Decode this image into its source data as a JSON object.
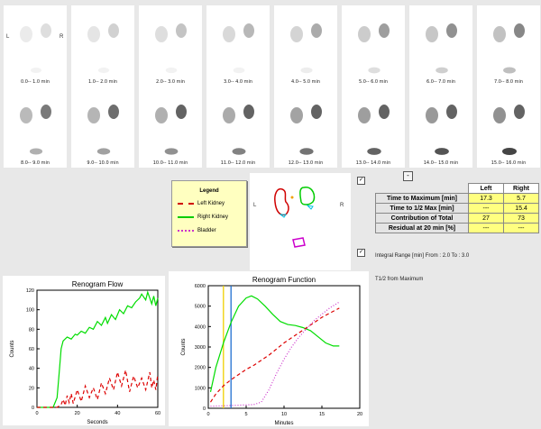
{
  "frames": [
    "0.0-- 1.0 min",
    "1.0-- 2.0 min",
    "2.0-- 3.0 min",
    "3.0-- 4.0 min",
    "4.0-- 5.0 min",
    "5.0-- 6.0 min",
    "6.0-- 7.0 min",
    "7.0-- 8.0 min",
    "8.0-- 9.0 min",
    "9.0-- 10.0 min",
    "10.0-- 11.0 min",
    "11.0-- 12.0 min",
    "12.0-- 13.0 min",
    "13.0-- 14.0 min",
    "14.0-- 15.0 min",
    "15.0-- 16.0 min"
  ],
  "orientation": {
    "left": "L",
    "right": "R"
  },
  "legend": {
    "title": "Legend",
    "items": [
      {
        "label": "Left Kidney",
        "color": "#d00000",
        "style": "dashed"
      },
      {
        "label": "Right Kidney",
        "color": "#00cc00",
        "style": "solid"
      },
      {
        "label": "Bladder",
        "color": "#cc33cc",
        "style": "dotted"
      }
    ]
  },
  "roi": {
    "left": "L",
    "right": "R"
  },
  "stats": {
    "headers": [
      "",
      "Left",
      "Right"
    ],
    "rows": [
      {
        "label": "Time to Maximum [min]",
        "left": "17.3",
        "right": "5.7"
      },
      {
        "label": "Time to 1/2 Max [min]",
        "left": "---",
        "right": "15.4"
      },
      {
        "label": "Contribution of Total",
        "left": "27",
        "right": "73"
      },
      {
        "label": "Residual at 20 min [%]",
        "left": "---",
        "right": "---"
      }
    ]
  },
  "toggle_button": "-",
  "integral_range": "Integral Range [min] From : 2.0  To : 3.0",
  "t12_label": "T1/2 from Maximum",
  "chart_data": [
    {
      "type": "line",
      "title": "Renogram Flow",
      "xlabel": "Seconds",
      "ylabel": "Counts",
      "xlim": [
        0,
        60
      ],
      "ylim": [
        0,
        120
      ],
      "xticks": [
        0,
        20,
        40,
        60
      ],
      "yticks": [
        0,
        20,
        40,
        60,
        80,
        100,
        120
      ],
      "series": [
        {
          "color": "#00dd00",
          "style": "solid",
          "x": [
            0,
            5,
            8,
            10,
            11,
            12,
            13,
            15,
            17,
            19,
            20,
            22,
            24,
            26,
            28,
            30,
            32,
            34,
            35,
            37,
            39,
            41,
            43,
            45,
            47,
            49,
            51,
            52,
            54,
            55,
            56,
            57,
            58,
            59,
            60
          ],
          "y": [
            0,
            0,
            0,
            10,
            35,
            60,
            68,
            72,
            70,
            75,
            74,
            78,
            76,
            82,
            80,
            88,
            84,
            92,
            86,
            95,
            90,
            100,
            96,
            104,
            102,
            108,
            112,
            116,
            110,
            118,
            112,
            106,
            114,
            104,
            112
          ]
        },
        {
          "color": "#dd0000",
          "style": "dashed",
          "x": [
            0,
            8,
            10,
            12,
            13,
            14,
            15,
            16,
            17,
            18,
            20,
            22,
            24,
            26,
            28,
            30,
            32,
            34,
            36,
            38,
            40,
            42,
            44,
            46,
            48,
            50,
            52,
            54,
            56,
            57,
            58,
            59,
            60
          ],
          "y": [
            0,
            0,
            0,
            3,
            8,
            2,
            12,
            5,
            14,
            4,
            18,
            6,
            22,
            10,
            20,
            8,
            25,
            14,
            30,
            18,
            36,
            22,
            38,
            16,
            32,
            20,
            30,
            18,
            36,
            20,
            28,
            18,
            34
          ]
        }
      ]
    },
    {
      "type": "line",
      "title": "Renogram Function",
      "xlabel": "Minutes",
      "ylabel": "Counts",
      "xlim": [
        0,
        20
      ],
      "ylim": [
        0,
        6000
      ],
      "xticks": [
        0,
        5,
        10,
        15,
        20
      ],
      "yticks": [
        0,
        1000,
        2000,
        3000,
        4000,
        5000,
        6000
      ],
      "series": [
        {
          "color": "#00dd00",
          "style": "solid",
          "x": [
            0.3,
            1,
            2,
            3,
            4,
            5,
            5.7,
            6.5,
            7.5,
            8.5,
            9.5,
            10.5,
            11.5,
            12.5,
            13.5,
            14.5,
            15.5,
            16.5,
            17.3
          ],
          "y": [
            800,
            2000,
            3200,
            4200,
            5000,
            5400,
            5500,
            5350,
            5000,
            4600,
            4250,
            4100,
            4050,
            3950,
            3800,
            3500,
            3200,
            3050,
            3050
          ]
        },
        {
          "color": "#dd0000",
          "style": "dashed",
          "x": [
            0.3,
            1,
            2,
            3,
            4,
            5,
            6,
            7,
            8,
            9,
            10,
            11,
            12,
            13,
            14,
            15,
            16,
            17.3
          ],
          "y": [
            300,
            700,
            1100,
            1400,
            1650,
            1900,
            2100,
            2350,
            2600,
            2900,
            3200,
            3450,
            3700,
            3950,
            4200,
            4450,
            4650,
            4900
          ]
        },
        {
          "color": "#cc33cc",
          "style": "dotted",
          "x": [
            0.3,
            2,
            4,
            6,
            7,
            8,
            9,
            10,
            11,
            12,
            13,
            14,
            15,
            16,
            17.3
          ],
          "y": [
            100,
            120,
            150,
            180,
            300,
            900,
            1700,
            2400,
            3000,
            3500,
            3900,
            4300,
            4600,
            4900,
            5200
          ]
        }
      ],
      "markers": [
        {
          "x": 2.0,
          "color": "#f0d000"
        },
        {
          "x": 3.0,
          "color": "#1e6fd0"
        }
      ]
    }
  ]
}
